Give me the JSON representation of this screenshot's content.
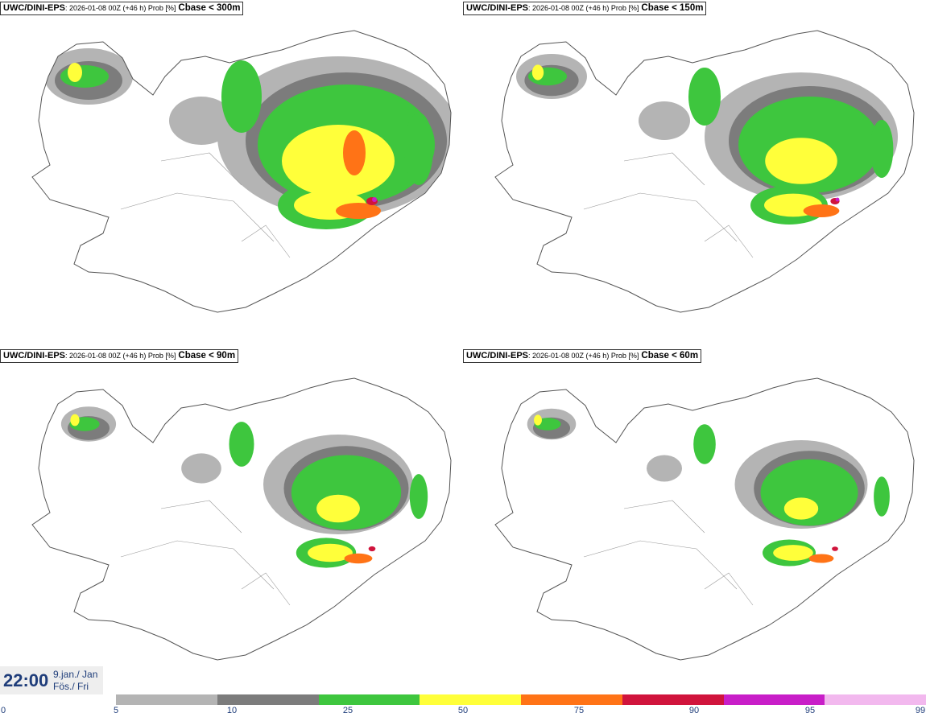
{
  "panels": [
    {
      "model": "UWC/DINI-EPS",
      "meta": ": 2026-01-08 00Z (+46 h) Prob [%]",
      "variable": "Cbase < 300m",
      "level": 1.0
    },
    {
      "model": "UWC/DINI-EPS",
      "meta": ": 2026-01-08 00Z (+46 h) Prob [%]",
      "variable": "Cbase < 150m",
      "level": 0.8
    },
    {
      "model": "UWC/DINI-EPS",
      "meta": ": 2026-01-08 00Z (+46 h) Prob [%]",
      "variable": "Cbase < 90m",
      "level": 0.62
    },
    {
      "model": "UWC/DINI-EPS",
      "meta": ": 2026-01-08 00Z (+46 h) Prob [%]",
      "variable": "Cbase < 60m",
      "level": 0.55
    }
  ],
  "valid_time": {
    "time": "22:00",
    "date_line1": "9.jan./ Jan",
    "date_line2": "Fös./ Fri"
  },
  "colorbar": {
    "ticks": [
      "0",
      "5",
      "10",
      "25",
      "50",
      "75",
      "90",
      "95",
      "99"
    ],
    "colors": [
      "#b4b4b4",
      "#7c7c7c",
      "#3ec63e",
      "#ffff3a",
      "#ff7316",
      "#d0143c",
      "#c81ec8",
      "#f2b8ee"
    ]
  }
}
